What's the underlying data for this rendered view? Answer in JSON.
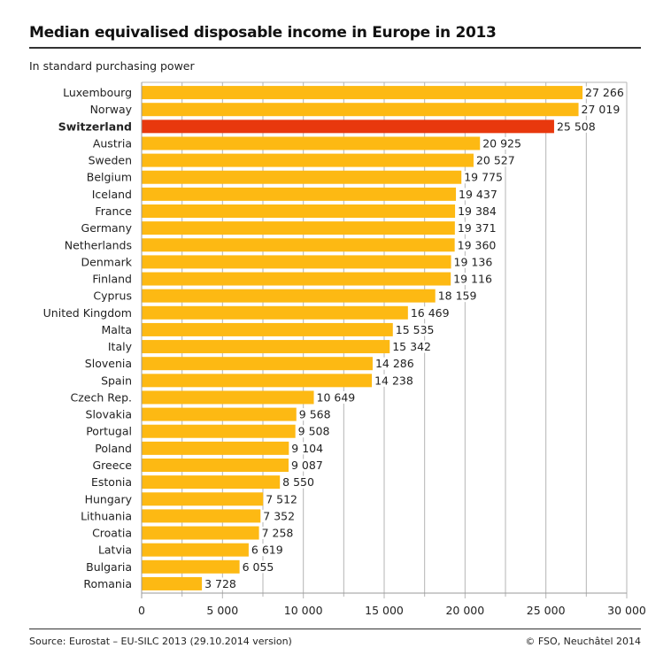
{
  "chart_data": {
    "type": "bar",
    "orientation": "horizontal",
    "title": "Median equivalised disposable income in Europe in 2013",
    "subtitle": "In standard purchasing power",
    "categories": [
      "Luxembourg",
      "Norway",
      "Switzerland",
      "Austria",
      "Sweden",
      "Belgium",
      "Iceland",
      "France",
      "Germany",
      "Netherlands",
      "Denmark",
      "Finland",
      "Cyprus",
      "United Kingdom",
      "Malta",
      "Italy",
      "Slovenia",
      "Spain",
      "Czech Rep.",
      "Slovakia",
      "Portugal",
      "Poland",
      "Greece",
      "Estonia",
      "Hungary",
      "Lithuania",
      "Croatia",
      "Latvia",
      "Bulgaria",
      "Romania"
    ],
    "values": [
      27266,
      27019,
      25508,
      20925,
      20527,
      19775,
      19437,
      19384,
      19371,
      19360,
      19136,
      19116,
      18159,
      16469,
      15535,
      15342,
      14286,
      14238,
      10649,
      9568,
      9508,
      9104,
      9087,
      8550,
      7512,
      7352,
      7258,
      6619,
      6055,
      3728
    ],
    "value_labels": [
      "27 266",
      "27 019",
      "25 508",
      "20 925",
      "20 527",
      "19 775",
      "19 437",
      "19 384",
      "19 371",
      "19 360",
      "19 136",
      "19 116",
      "18 159",
      "16 469",
      "15 535",
      "15 342",
      "14 286",
      "14 238",
      "10 649",
      "9 568",
      "9 508",
      "9 104",
      "9 087",
      "8 550",
      "7 512",
      "7 352",
      "7 258",
      "6 619",
      "6 055",
      "3 728"
    ],
    "highlight": "Switzerland",
    "xlim": [
      0,
      30000
    ],
    "xticks": [
      0,
      5000,
      10000,
      15000,
      20000,
      25000,
      30000
    ],
    "xtick_labels": [
      "0",
      "5 000",
      "10 000",
      "15 000",
      "20 000",
      "25 000",
      "30 000"
    ],
    "grid": true,
    "colors": {
      "bar": "#FDB913",
      "highlight": "#E8380D",
      "grid": "#b5b5b5"
    }
  },
  "footer": {
    "source": "Source: Eurostat – EU-SILC 2013 (29.10.2014 version)",
    "credit": "© FSO, Neuchâtel 2014"
  }
}
